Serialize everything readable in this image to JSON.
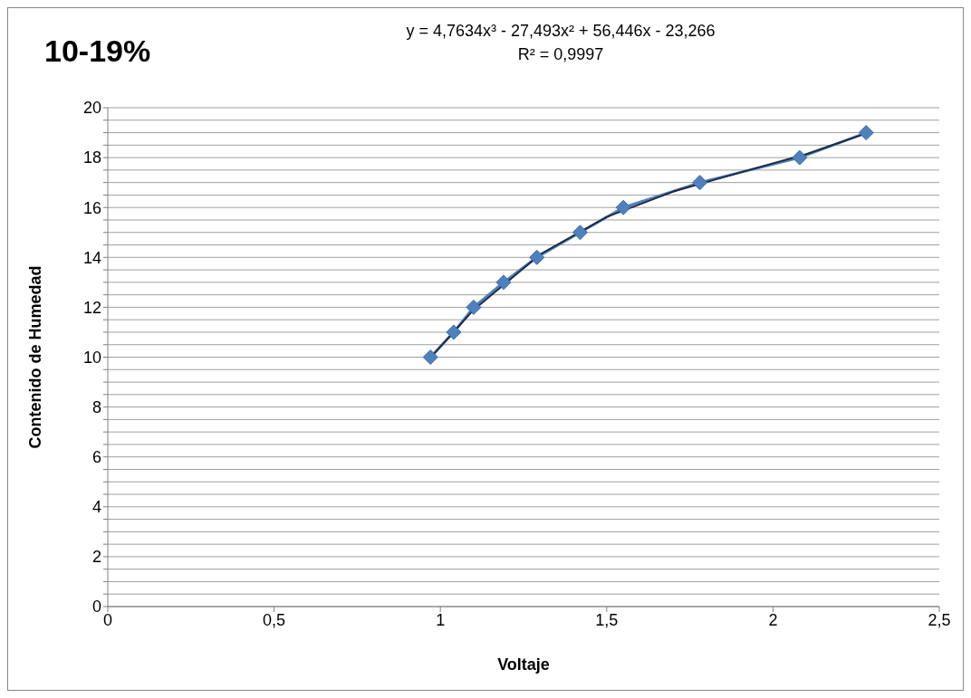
{
  "chart_data": {
    "type": "line",
    "title": "10-19%",
    "xlabel": "Voltaje",
    "ylabel": "Contenido de Humedad",
    "annotations": [
      "y = 4,7634x³ - 27,493x² + 56,446x - 23,266",
      "R² = 0,9997"
    ],
    "series": [
      {
        "color": "#4f81bd",
        "marker": "diamond",
        "x": [
          0.97,
          1.04,
          1.1,
          1.19,
          1.29,
          1.42,
          1.55,
          1.78,
          2.08,
          2.28
        ],
        "values": [
          10,
          11,
          12,
          13,
          14,
          15,
          16,
          17,
          18,
          19
        ]
      },
      {
        "color": "#1f2a44",
        "marker": "none",
        "x": [
          0.97,
          1.1,
          1.3,
          1.5,
          1.7,
          1.9,
          2.1,
          2.28
        ],
        "values": [
          9.97,
          11.9,
          14.12,
          15.62,
          16.64,
          17.4,
          18.14,
          18.97
        ]
      }
    ],
    "xlim": [
      0,
      2.5
    ],
    "xticks": [
      0,
      {
        "value": 0.5,
        "label": "0,5"
      },
      1,
      {
        "value": 1.5,
        "label": "1,5"
      },
      2,
      {
        "value": 2.5,
        "label": "2,5"
      }
    ],
    "ylim": [
      0,
      20
    ],
    "yticks": [
      0,
      {
        "value": 0.5,
        "label": null
      },
      {
        "value": 1,
        "label": null
      },
      {
        "value": 1.5,
        "label": null
      },
      2,
      {
        "value": 2.5,
        "label": null
      },
      {
        "value": 3,
        "label": null
      },
      {
        "value": 3.5,
        "label": null
      },
      4,
      {
        "value": 4.5,
        "label": null
      },
      {
        "value": 5,
        "label": null
      },
      {
        "value": 5.5,
        "label": null
      },
      6,
      {
        "value": 6.5,
        "label": null
      },
      {
        "value": 7,
        "label": null
      },
      {
        "value": 7.5,
        "label": null
      },
      8,
      {
        "value": 8.5,
        "label": null
      },
      {
        "value": 9,
        "label": null
      },
      {
        "value": 9.5,
        "label": null
      },
      10,
      {
        "value": 10.5,
        "label": null
      },
      {
        "value": 11,
        "label": null
      },
      {
        "value": 11.5,
        "label": null
      },
      12,
      {
        "value": 12.5,
        "label": null
      },
      {
        "value": 13,
        "label": null
      },
      {
        "value": 13.5,
        "label": null
      },
      14,
      {
        "value": 14.5,
        "label": null
      },
      {
        "value": 15,
        "label": null
      },
      {
        "value": 15.5,
        "label": null
      },
      16,
      {
        "value": 16.5,
        "label": null
      },
      {
        "value": 17,
        "label": null
      },
      {
        "value": 17.5,
        "label": null
      },
      18,
      {
        "value": 18.5,
        "label": null
      },
      {
        "value": 19,
        "label": null
      },
      {
        "value": 19.5,
        "label": null
      },
      20
    ],
    "grid": "y",
    "line_style": "solid"
  }
}
